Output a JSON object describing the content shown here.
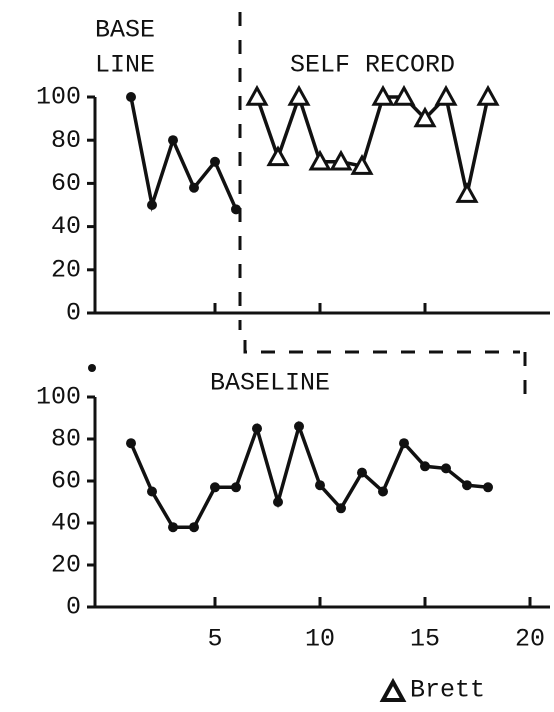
{
  "chart_data": [
    {
      "type": "line",
      "phases": [
        {
          "label": [
            "BASE",
            "LINE"
          ],
          "marker": "circle",
          "x": [
            1,
            2,
            3,
            4,
            5,
            6
          ],
          "values": [
            100,
            50,
            80,
            58,
            70,
            48
          ]
        },
        {
          "label": [
            "SELF RECORD"
          ],
          "marker": "triangle",
          "x": [
            7,
            8,
            9,
            10,
            11,
            12,
            13,
            14,
            15,
            16,
            17,
            18
          ],
          "values": [
            100,
            72,
            100,
            70,
            70,
            68,
            100,
            100,
            90,
            100,
            55,
            100
          ]
        }
      ],
      "xlim": [
        0,
        21
      ],
      "xticks": [
        5,
        10,
        15
      ],
      "show_xtick_labels": false,
      "ylim": [
        0,
        100
      ],
      "yticks": [
        0,
        20,
        40,
        60,
        80,
        100
      ]
    },
    {
      "type": "line",
      "phases": [
        {
          "label": [
            "BASELINE"
          ],
          "marker": "circle",
          "x": [
            1,
            2,
            3,
            4,
            5,
            6,
            7,
            8,
            9,
            10,
            11,
            12,
            13,
            14,
            15,
            16,
            17,
            18
          ],
          "values": [
            78,
            55,
            38,
            38,
            57,
            57,
            85,
            50,
            86,
            58,
            47,
            64,
            55,
            78,
            67,
            66,
            58,
            57
          ]
        }
      ],
      "xlim": [
        0,
        21
      ],
      "xticks": [
        5,
        10,
        15,
        20
      ],
      "show_xtick_labels": true,
      "ylim": [
        0,
        100
      ],
      "yticks": [
        0,
        20,
        40,
        60,
        80,
        100
      ],
      "legend": {
        "label": "Brett",
        "marker": "triangle"
      }
    }
  ]
}
